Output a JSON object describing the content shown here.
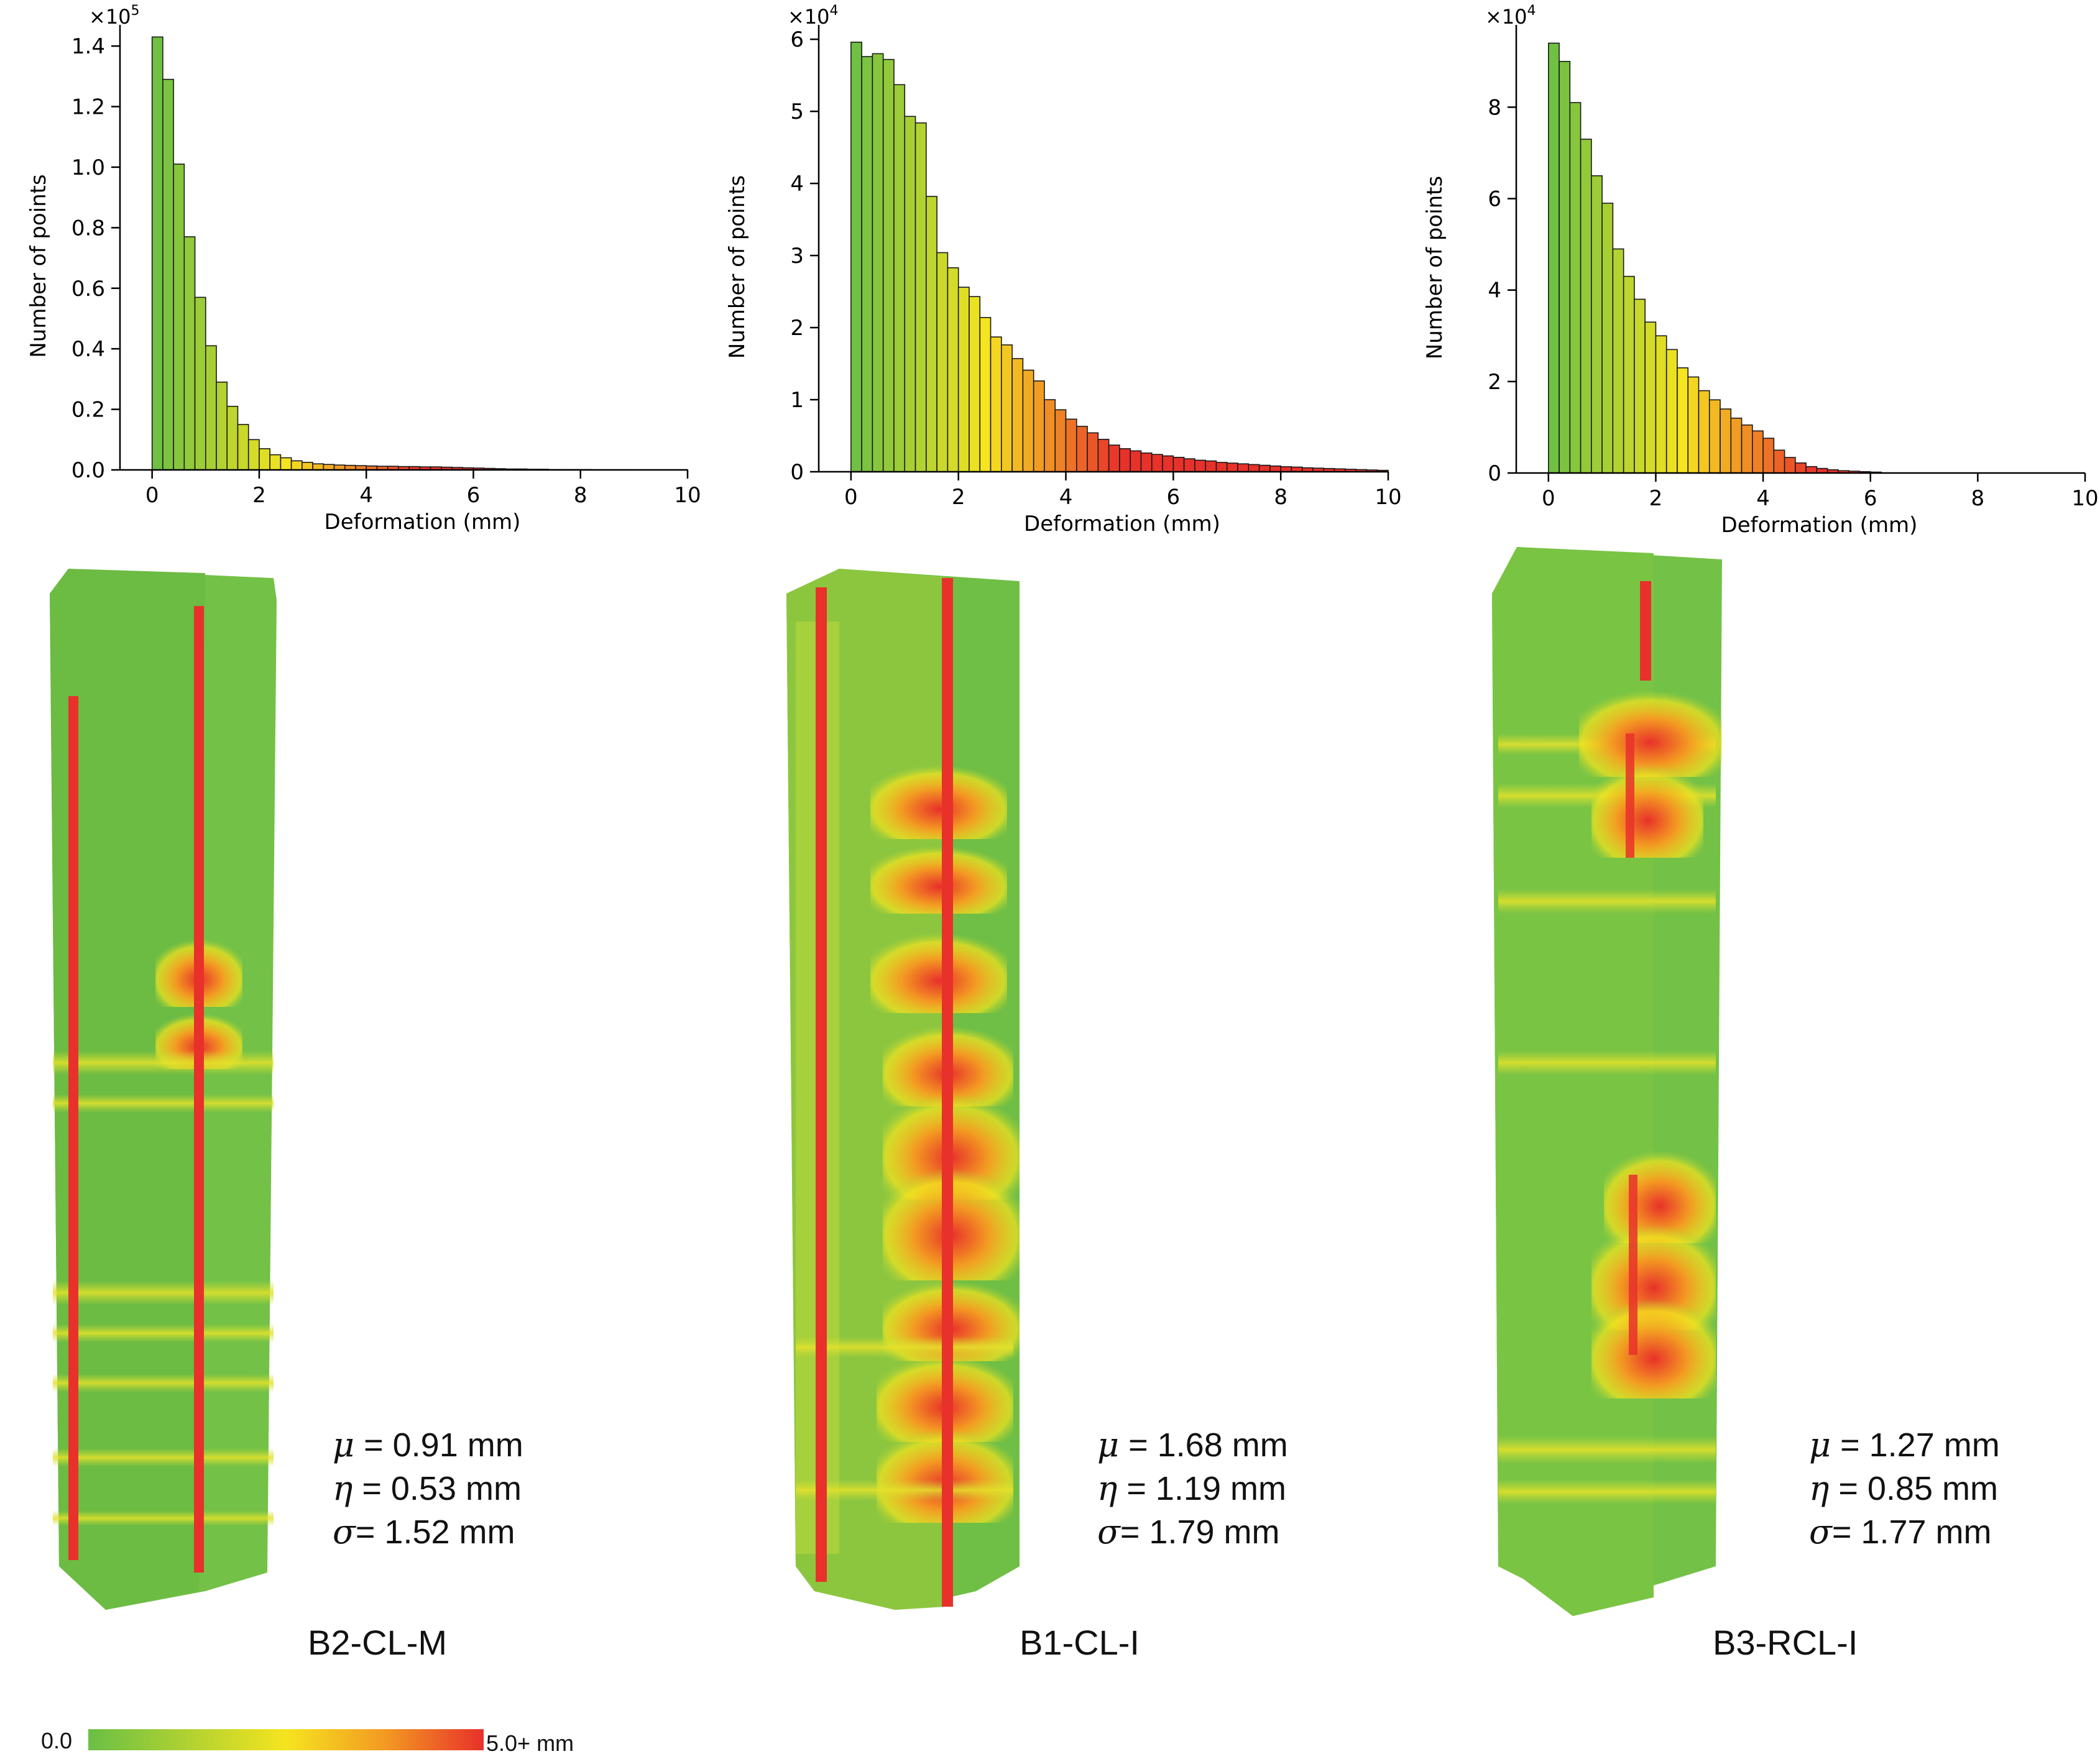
{
  "colors": {
    "scale_low": "#6abf45",
    "scale_mid": "#f5e41f",
    "scale_high": "#e8312a",
    "bar_edge": "#1a1a1a"
  },
  "chart_data": [
    {
      "type": "bar",
      "specimen": "B2-CL-M",
      "xlabel": "Deformation (mm)",
      "ylabel": "Number of points",
      "y_multiplier_label": "×10",
      "y_multiplier_exp": "5",
      "xlim": [
        -0.6,
        10
      ],
      "ylim": [
        0,
        1.47
      ],
      "xticks": [
        0,
        2,
        4,
        6,
        8,
        10
      ],
      "yticks": [
        0.0,
        0.2,
        0.4,
        0.6,
        0.8,
        1.0,
        1.2,
        1.4
      ],
      "ytick_labels": [
        "0.0",
        "0.2",
        "0.4",
        "0.6",
        "0.8",
        "1.0",
        "1.2",
        "1.4"
      ],
      "bin_width": 0.2,
      "values": [
        1.43,
        1.29,
        1.01,
        0.77,
        0.57,
        0.41,
        0.29,
        0.21,
        0.15,
        0.1,
        0.07,
        0.05,
        0.04,
        0.03,
        0.025,
        0.02,
        0.018,
        0.016,
        0.015,
        0.014,
        0.013,
        0.012,
        0.012,
        0.011,
        0.011,
        0.01,
        0.01,
        0.009,
        0.008,
        0.007,
        0.006,
        0.005,
        0.004,
        0.003,
        0.003,
        0.002,
        0.002,
        0.001,
        0.001,
        0.001,
        0.001,
        0.0005,
        0.0005,
        0.0005,
        0.0005,
        0.0003,
        0.0003,
        0.0002,
        0.0002,
        0.0001
      ]
    },
    {
      "type": "bar",
      "specimen": "B1-CL-I",
      "xlabel": "Deformation (mm)",
      "ylabel": "Number of points",
      "y_multiplier_label": "×10",
      "y_multiplier_exp": "4",
      "xlim": [
        -0.6,
        10
      ],
      "ylim": [
        0,
        6.2
      ],
      "xticks": [
        0,
        2,
        4,
        6,
        8,
        10
      ],
      "yticks": [
        0,
        1,
        2,
        3,
        4,
        5,
        6
      ],
      "ytick_labels": [
        "0",
        "1",
        "2",
        "3",
        "4",
        "5",
        "6"
      ],
      "bin_width": 0.2,
      "values": [
        5.96,
        5.76,
        5.8,
        5.72,
        5.37,
        4.93,
        4.84,
        3.82,
        3.04,
        2.83,
        2.56,
        2.43,
        2.14,
        1.87,
        1.76,
        1.57,
        1.41,
        1.26,
        1.0,
        0.86,
        0.73,
        0.63,
        0.54,
        0.45,
        0.37,
        0.32,
        0.29,
        0.26,
        0.24,
        0.22,
        0.2,
        0.18,
        0.16,
        0.15,
        0.13,
        0.12,
        0.11,
        0.1,
        0.09,
        0.08,
        0.07,
        0.065,
        0.055,
        0.05,
        0.045,
        0.04,
        0.035,
        0.03,
        0.025,
        0.02
      ]
    },
    {
      "type": "bar",
      "specimen": "B3-RCL-I",
      "xlabel": "Deformation (mm)",
      "ylabel": "Number of points",
      "y_multiplier_label": "×10",
      "y_multiplier_exp": "4",
      "xlim": [
        -0.6,
        10
      ],
      "ylim": [
        0,
        9.8
      ],
      "xticks": [
        0,
        2,
        4,
        6,
        8,
        10
      ],
      "xtick_labels": [
        "0",
        "2",
        "4",
        "6",
        "8",
        "10"
      ],
      "yticks": [
        0,
        2,
        4,
        6,
        8
      ],
      "ytick_labels": [
        "0",
        "2",
        "4",
        "6",
        "8"
      ],
      "bin_width": 0.2,
      "values": [
        9.4,
        9.0,
        8.1,
        7.3,
        6.5,
        5.9,
        4.9,
        4.3,
        3.8,
        3.3,
        3.0,
        2.7,
        2.3,
        2.1,
        1.8,
        1.6,
        1.4,
        1.2,
        1.05,
        0.92,
        0.76,
        0.5,
        0.34,
        0.22,
        0.14,
        0.1,
        0.07,
        0.05,
        0.04,
        0.03,
        0.02
      ]
    }
  ],
  "stats": [
    {
      "mu": " = 0.91 mm",
      "eta": " = 0.53 mm",
      "sigma": "= 1.52 mm"
    },
    {
      "mu": " = 1.68 mm",
      "eta": " = 1.19 mm",
      "sigma": "= 1.79 mm"
    },
    {
      "mu": " = 1.27 mm",
      "eta": " = 0.85 mm",
      "sigma": "= 1.77 mm"
    }
  ],
  "stat_symbols": {
    "mu": "μ",
    "eta": "η",
    "sigma": "σ"
  },
  "specimens": [
    "B2-CL-M",
    "B1-CL-I",
    "B3-RCL-I"
  ],
  "colorbar": {
    "min_label": "0.0",
    "max_label": "5.0+ mm"
  }
}
